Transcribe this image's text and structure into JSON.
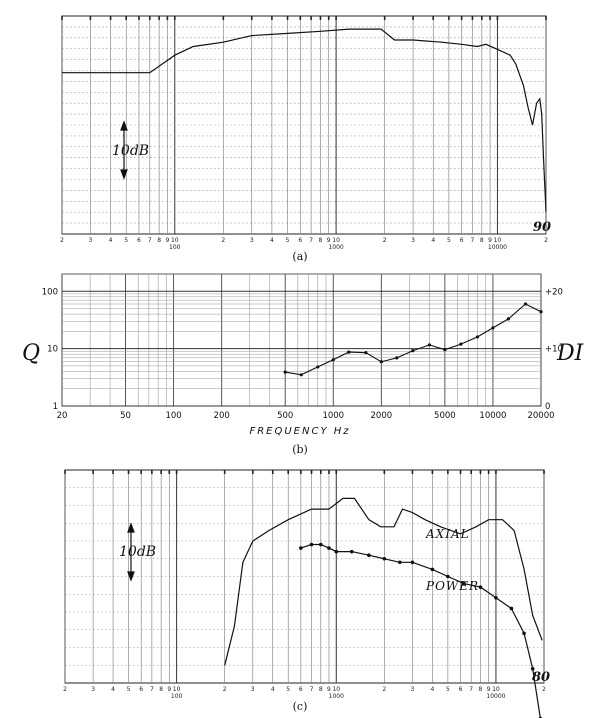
{
  "chart_data": [
    {
      "id": "a",
      "type": "line",
      "caption": "(a)",
      "x_scale": "log",
      "xlim": [
        20,
        20000
      ],
      "x_tick_labels": [
        "2",
        "3",
        "4",
        "5",
        "6",
        "7",
        "8",
        "9",
        "10",
        "",
        "2",
        "3",
        "4",
        "5",
        "6",
        "7",
        "8",
        "9",
        "10",
        "",
        "2",
        "3",
        "4",
        "5",
        "6",
        "7",
        "8",
        "9",
        "10",
        "",
        "2",
        "3",
        "4",
        "5",
        "6",
        "7",
        "8",
        "9",
        "10",
        "",
        "2"
      ],
      "decade_labels": [
        "100",
        "1000",
        "10000"
      ],
      "scale_annotation": "10dB",
      "corner_mark": "90",
      "series": [
        {
          "x": [
            20,
            70,
            100,
            130,
            200,
            300,
            500,
            800,
            1200,
            1900,
            2300,
            3000,
            4500,
            6000,
            7500,
            8500,
            10500,
            12000,
            13000,
            14500,
            15500,
            16500,
            17500,
            18300,
            18800,
            19300,
            20000
          ],
          "y": [
            74,
            74,
            82,
            86,
            88,
            91,
            92,
            93,
            94,
            94,
            89,
            89,
            88,
            87,
            86,
            87,
            84,
            82,
            78,
            68,
            58,
            50,
            60,
            62,
            55,
            35,
            10
          ]
        }
      ]
    },
    {
      "id": "b",
      "type": "line",
      "caption": "(b)",
      "x_scale": "log",
      "y_scale": "log",
      "xlim": [
        20,
        20000
      ],
      "ylim": [
        1,
        200
      ],
      "x_tick_labels": [
        "20",
        "50",
        "100",
        "200",
        "500",
        "1000",
        "2000",
        "5000",
        "10000",
        "20000"
      ],
      "y_tick_labels": [
        "100",
        "10",
        "1"
      ],
      "y2_tick_labels": [
        "+20",
        "+10",
        "0"
      ],
      "xlabel": "FREQUENCY   Hz",
      "ylabel": "Q",
      "y2label": "DI",
      "series": [
        {
          "x": [
            500,
            630,
            800,
            1000,
            1250,
            1600,
            2000,
            2500,
            3150,
            4000,
            5000,
            6300,
            8000,
            10000,
            12500,
            16000,
            20000
          ],
          "y": [
            3.9,
            3.5,
            4.8,
            6.4,
            8.7,
            8.5,
            5.9,
            6.9,
            9.2,
            11.6,
            9.6,
            12.0,
            16.0,
            23.0,
            33.0,
            60.0,
            44.0
          ]
        }
      ]
    },
    {
      "id": "c",
      "type": "line",
      "caption": "(c)",
      "x_scale": "log",
      "xlim": [
        20,
        20000
      ],
      "x_tick_labels": [
        "2",
        "3",
        "4",
        "5",
        "6",
        "7",
        "8",
        "9",
        "10",
        "",
        "2",
        "3",
        "4",
        "5",
        "6",
        "7",
        "8",
        "9",
        "10",
        "",
        "2",
        "3",
        "4",
        "5",
        "6",
        "7",
        "8",
        "9",
        "10",
        "",
        "2",
        "3",
        "4",
        "5",
        "6",
        "7",
        "8",
        "9",
        "10",
        "",
        "2"
      ],
      "decade_labels": [
        "100",
        "1000",
        "10000"
      ],
      "scale_annotation": "10dB",
      "corner_mark": "80",
      "series": [
        {
          "name": "AXIAL",
          "x": [
            200,
            230,
            260,
            300,
            380,
            500,
            700,
            900,
            1100,
            1300,
            1600,
            1900,
            2300,
            2600,
            3000,
            3600,
            4500,
            6000,
            7500,
            9000,
            11000,
            13000,
            15000,
            17000,
            19500
          ],
          "y": [
            45,
            56,
            74,
            80,
            83,
            86,
            89,
            89,
            92,
            92,
            86,
            84,
            84,
            89,
            88,
            86,
            84,
            82,
            84,
            86,
            86,
            83,
            72,
            59,
            52
          ]
        },
        {
          "name": "POWER",
          "x": [
            600,
            700,
            800,
            900,
            1000,
            1250,
            1600,
            2000,
            2500,
            3000,
            4000,
            5000,
            6300,
            8000,
            10000,
            12500,
            15000,
            17000,
            19000
          ],
          "y": [
            78,
            79,
            79,
            78,
            77,
            77,
            76,
            75,
            74,
            74,
            72,
            70,
            68,
            67,
            64,
            61,
            54,
            44,
            30
          ]
        }
      ]
    }
  ]
}
